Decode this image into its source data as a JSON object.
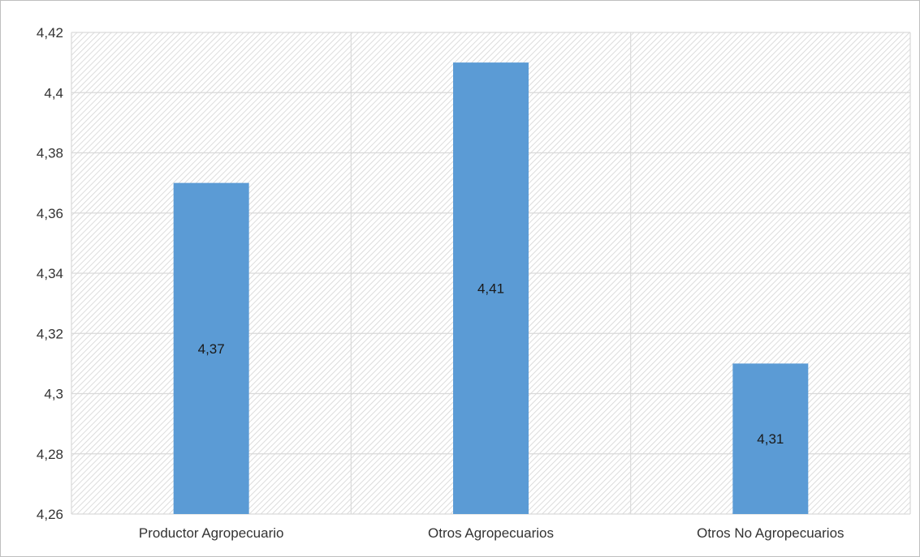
{
  "chart_data": {
    "type": "bar",
    "title": "",
    "xlabel": "",
    "ylabel": "",
    "categories": [
      "Productor Agropecuario",
      "Otros Agropecuarios",
      "Otros No Agropecuarios"
    ],
    "values": [
      4.37,
      4.41,
      4.31
    ],
    "data_labels": [
      "4,37",
      "4,41",
      "4,31"
    ],
    "ylim": [
      4.26,
      4.42
    ],
    "yticks": [
      4.26,
      4.28,
      4.3,
      4.32,
      4.34,
      4.36,
      4.38,
      4.4,
      4.42
    ],
    "ytick_labels": [
      "4,26",
      "4,28",
      "4,3",
      "4,32",
      "4,34",
      "4,36",
      "4,38",
      "4,4",
      "4,42"
    ],
    "grid": true,
    "plot_background": "diagonal-hatch",
    "bar_color": "#5b9bd5",
    "grid_color": "#d9d9d9",
    "legend": "none"
  }
}
